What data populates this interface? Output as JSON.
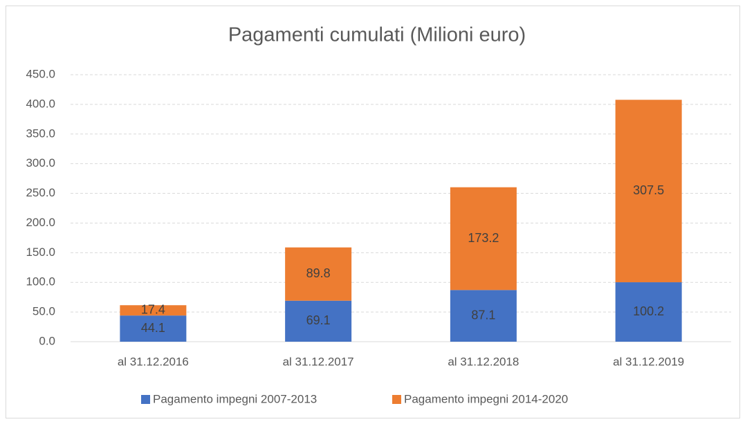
{
  "chart_data": {
    "type": "stacked_bar",
    "title": "Pagamenti cumulati (Milioni euro)",
    "categories": [
      "al 31.12.2016",
      "al 31.12.2017",
      "al 31.12.2018",
      "al 31.12.2019"
    ],
    "series": [
      {
        "name": "Pagamento impegni 2007-2013",
        "color": "#4472c4",
        "values": [
          44.1,
          69.1,
          87.1,
          100.2
        ]
      },
      {
        "name": "Pagamento impegni 2014-2020",
        "color": "#ed7d31",
        "values": [
          17.4,
          89.8,
          173.2,
          307.5
        ]
      }
    ],
    "ylim": [
      0,
      450
    ],
    "yticks": [
      {
        "value": 0,
        "label": "0.0"
      },
      {
        "value": 50,
        "label": "50.0"
      },
      {
        "value": 100,
        "label": "100.0"
      },
      {
        "value": 150,
        "label": "150.0"
      },
      {
        "value": 200,
        "label": "200.0"
      },
      {
        "value": 250,
        "label": "250.0"
      },
      {
        "value": 300,
        "label": "300.0"
      },
      {
        "value": 350,
        "label": "350.0"
      },
      {
        "value": 400,
        "label": "400.0"
      },
      {
        "value": 450,
        "label": "450.0"
      }
    ],
    "grid": true,
    "legend": "bottom"
  }
}
